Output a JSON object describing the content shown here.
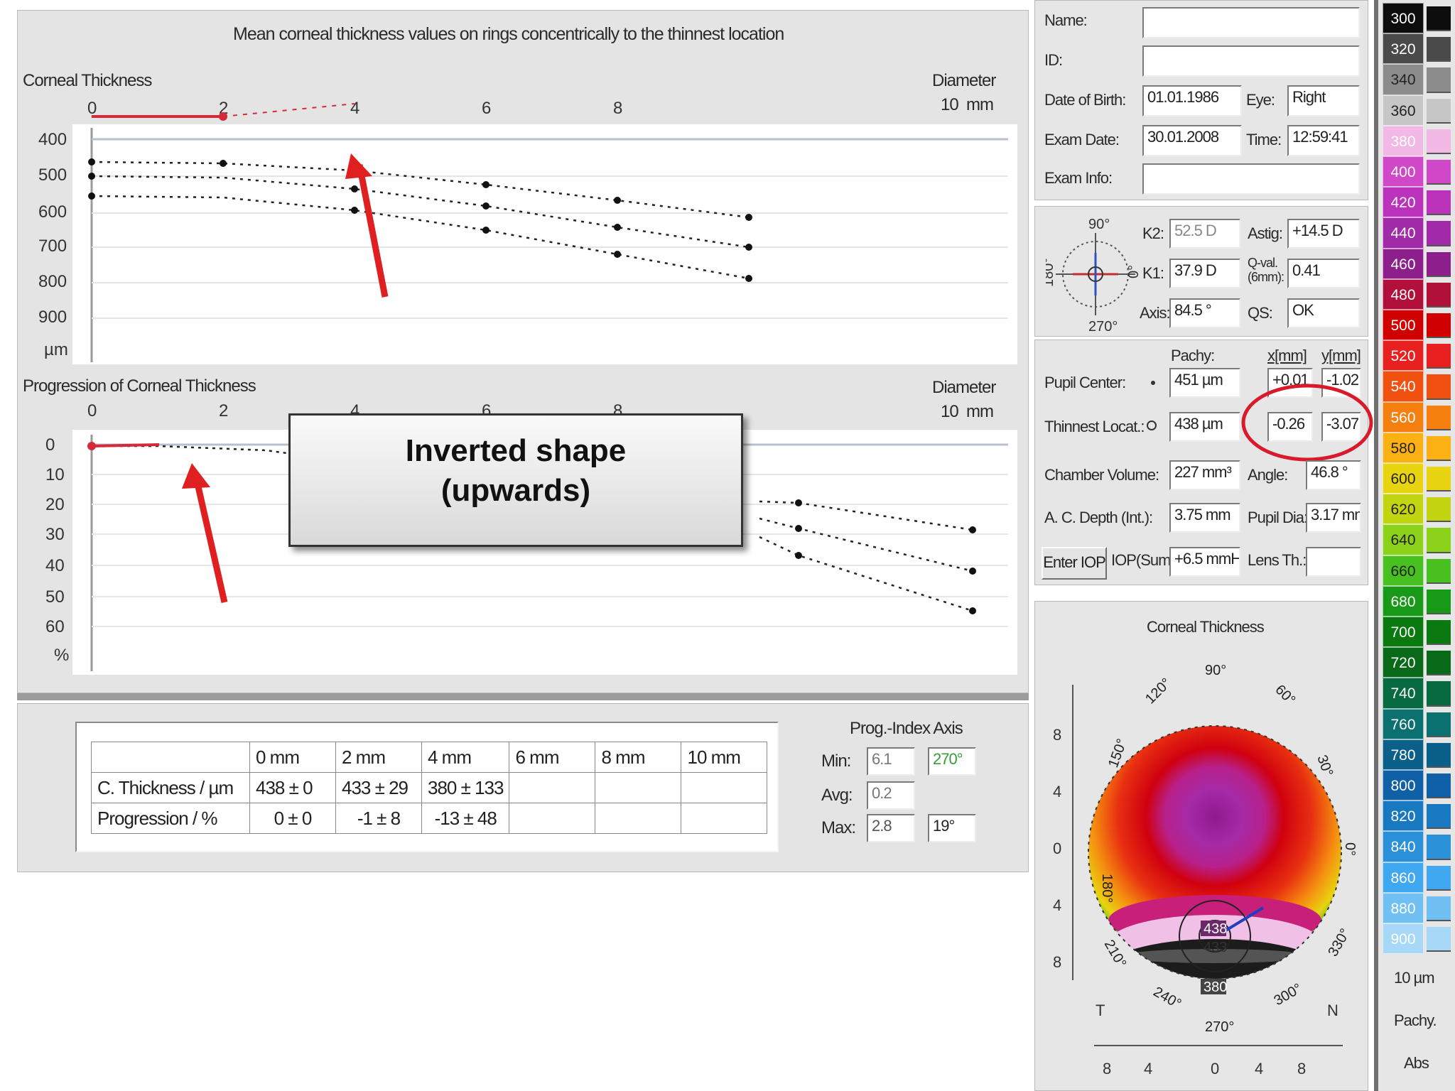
{
  "header": {
    "title": "Mean corneal thickness values on rings concentrically to the thinnest location"
  },
  "top_chart": {
    "title": "Corneal Thickness",
    "diameter_label": "Diameter",
    "unit_label": "10  mm",
    "x_ticks": [
      "0",
      "2",
      "4",
      "6",
      "8"
    ],
    "y_ticks": [
      "400",
      "500",
      "600",
      "700",
      "800",
      "900"
    ],
    "y_unit": "µm"
  },
  "bottom_chart": {
    "title": "Progression of Corneal Thickness",
    "diameter_label": "Diameter",
    "unit_label": "10  mm",
    "x_ticks": [
      "0",
      "2",
      "4",
      "6",
      "8"
    ],
    "y_ticks": [
      "0",
      "10",
      "20",
      "30",
      "40",
      "50",
      "60"
    ],
    "y_unit": "%"
  },
  "callout": {
    "line1": "Inverted shape",
    "line2": "(upwards)"
  },
  "table": {
    "headers": [
      "",
      "0 mm",
      "2 mm",
      "4 mm",
      "6 mm",
      "8 mm",
      "10 mm"
    ],
    "rows": [
      [
        "C. Thickness / µm",
        "438 ± 0",
        "433 ± 29",
        "380 ± 133",
        "",
        "",
        ""
      ],
      [
        "Progression / %",
        "0 ± 0",
        "-1 ± 8",
        "-13 ± 48",
        "",
        "",
        ""
      ]
    ]
  },
  "prog_index": {
    "title": "Prog.-Index Axis",
    "min_label": "Min:",
    "min_value": "6.1",
    "min_axis": "270°",
    "avg_label": "Avg:",
    "avg_value": "0.2",
    "max_label": "Max:",
    "max_value": "2.8",
    "max_axis": "19°"
  },
  "patient": {
    "name_label": "Name:",
    "name_value": "",
    "id_label": "ID:",
    "id_value": "",
    "dob_label": "Date of Birth:",
    "dob_value": "01.01.1986",
    "eye_label": "Eye:",
    "eye_value": "Right",
    "exam_date_label": "Exam Date:",
    "exam_date_value": "30.01.2008",
    "time_label": "Time:",
    "time_value": "12:59:41",
    "exam_info_label": "Exam Info:",
    "exam_info_value": ""
  },
  "kerato": {
    "angle_90": "90°",
    "angle_180": "180°",
    "angle_0": "0°",
    "angle_270": "270°",
    "k2_label": "K2:",
    "k2_value": "52.5 D",
    "astig_label": "Astig:",
    "astig_value": "+14.5 D",
    "k1_label": "K1:",
    "k1_value": "37.9 D",
    "qval_label": "Q-val. (6mm):",
    "qval_value": "0.41",
    "axis_label": "Axis:",
    "axis_value": "84.5 °",
    "qs_label": "QS:",
    "qs_value": "OK"
  },
  "pachy": {
    "pachy_header": "Pachy:",
    "x_header": "x[mm]",
    "y_header": "y[mm]",
    "pupil_label": "Pupil Center:",
    "pupil_pachy": "451 µm",
    "pupil_x": "+0.01",
    "pupil_y": "-1.02",
    "thinnest_label": "Thinnest Locat.:",
    "thinnest_pachy": "438 µm",
    "thinnest_x": "-0.26",
    "thinnest_y": "-3.07",
    "chamber_label": "Chamber Volume:",
    "chamber_value": "227 mm³",
    "angle_label": "Angle:",
    "angle_value": "46.8 °",
    "acd_label": "A. C. Depth (Int.):",
    "acd_value": "3.75 mm",
    "pupil_dia_label": "Pupil Dia:",
    "pupil_dia_value": "3.17 mm",
    "enter_iop": "Enter IOP",
    "iop_label": "IOP(Sum):",
    "iop_value": "+6.5 mmHg",
    "lens_label": "Lens Th.:",
    "lens_value": ""
  },
  "map": {
    "title": "Corneal Thickness",
    "deg_90": "90°",
    "deg_120": "120°",
    "deg_60": "60°",
    "deg_150": "150°",
    "deg_30": "30°",
    "deg_180": "180°",
    "deg_0": "0°",
    "deg_210": "210°",
    "deg_330": "330°",
    "deg_240": "240°",
    "deg_300": "300°",
    "deg_270": "270°",
    "left_ticks": [
      "8",
      "4",
      "0",
      "4",
      "8"
    ],
    "bottom_ticks": [
      "8",
      "4",
      "0",
      "4",
      "8"
    ],
    "T_label": "T",
    "N_label": "N",
    "val_438": "438",
    "val_433": "433",
    "val_380": "380"
  },
  "color_scale": {
    "values": [
      "300",
      "320",
      "340",
      "360",
      "380",
      "400",
      "420",
      "440",
      "460",
      "480",
      "500",
      "520",
      "540",
      "560",
      "580",
      "600",
      "620",
      "640",
      "660",
      "680",
      "700",
      "720",
      "740",
      "760",
      "780",
      "800",
      "820",
      "840",
      "860",
      "880",
      "900"
    ],
    "colors": [
      "#0d0d0d",
      "#4a4a4a",
      "#8c8c8c",
      "#c6c6c6",
      "#f2b8e6",
      "#d048c8",
      "#bb33bb",
      "#a02aa8",
      "#8c1f8c",
      "#b0103a",
      "#d00000",
      "#e82020",
      "#f05010",
      "#f58010",
      "#fbb014",
      "#e8d410",
      "#c2d510",
      "#8cd21a",
      "#48c020",
      "#189a18",
      "#0a7a10",
      "#086a18",
      "#086a40",
      "#0a7070",
      "#0a6088",
      "#1060a8",
      "#1878c0",
      "#2a90d8",
      "#40a8f0",
      "#70c0f4",
      "#a8d8f8"
    ],
    "step_label": "10 µm",
    "mode_label": "Pachy.",
    "abs_label": "Abs"
  },
  "accent": {
    "arrow": "#e02020",
    "highlight_circle": "#d81a2a",
    "curve_red": "#d42a3a"
  }
}
